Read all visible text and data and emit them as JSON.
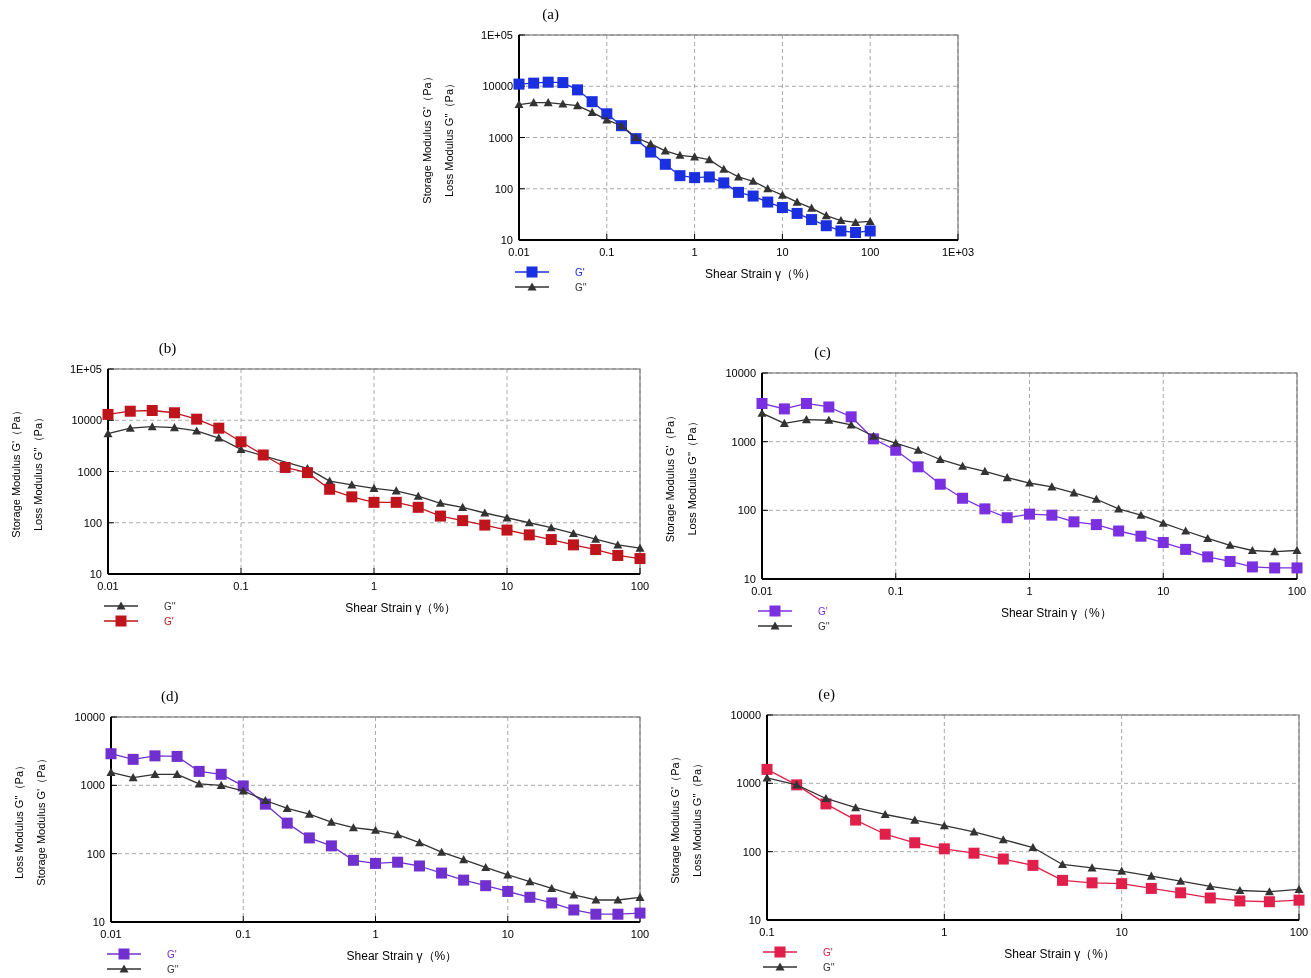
{
  "chart_data": [
    {
      "type": "line",
      "title": "(a)",
      "xlabel": "Shear Strain γ（%）",
      "ylabel": "Storage Modulus G'（Pa）\nLoss Modulus G''（Pa）",
      "log": "xy",
      "grid": true,
      "legend": "bottom left",
      "line_style": "solid",
      "xlim": [
        0.01,
        1000
      ],
      "xticks": [
        0.01,
        0.1,
        1,
        10,
        100,
        {
          "value": 1000,
          "label": "1E+03"
        }
      ],
      "ylim": [
        10,
        100000
      ],
      "yticks": [
        10,
        100,
        1000,
        10000,
        {
          "value": 100000,
          "label": "1E+05"
        }
      ],
      "x": [
        0.01,
        0.0147,
        0.0215,
        0.0316,
        0.0464,
        0.0681,
        0.1,
        0.147,
        0.215,
        0.316,
        0.464,
        0.681,
        1,
        1.47,
        2.15,
        3.16,
        4.64,
        6.81,
        10,
        14.7,
        21.5,
        31.6,
        46.4,
        68.1,
        100
      ],
      "series": [
        {
          "name": "G'",
          "color": "#1a2fe0",
          "marker": "square",
          "values": [
            11000,
            11500,
            12000,
            11800,
            8500,
            5000,
            2900,
            1700,
            950,
            520,
            300,
            180,
            165,
            170,
            130,
            85,
            72,
            55,
            43,
            33,
            25,
            19,
            15,
            14,
            15
          ]
        },
        {
          "name": "G''",
          "color": "#333333",
          "marker": "triangle",
          "values": [
            4400,
            4800,
            4800,
            4500,
            4200,
            3100,
            2200,
            1700,
            1000,
            750,
            550,
            450,
            420,
            370,
            240,
            170,
            140,
            100,
            75,
            55,
            42,
            30,
            24,
            22,
            23
          ]
        }
      ]
    },
    {
      "type": "line",
      "title": "(b)",
      "xlabel": "Shear Strain γ（%）",
      "ylabel": "Storage Modulus G'（Pa）\nLoss Modulus G''（Pa）",
      "log": "xy",
      "grid": true,
      "legend": "bottom left",
      "line_style": "solid",
      "xlim": [
        0.01,
        100
      ],
      "xticks": [
        0.01,
        0.1,
        1,
        10,
        100
      ],
      "ylim": [
        10,
        100000
      ],
      "yticks": [
        10,
        100,
        1000,
        10000,
        {
          "value": 100000,
          "label": "1E+05"
        }
      ],
      "x": [
        0.01,
        0.0147,
        0.0215,
        0.0316,
        0.0464,
        0.0681,
        0.1,
        0.147,
        0.215,
        0.316,
        0.464,
        0.681,
        1,
        1.47,
        2.15,
        3.16,
        4.64,
        6.81,
        10,
        14.7,
        21.5,
        31.6,
        46.4,
        68.1,
        100
      ],
      "series": [
        {
          "name": "G''",
          "color": "#333333",
          "marker": "triangle",
          "values": [
            5500,
            7000,
            7500,
            7200,
            6200,
            4500,
            2700,
            null,
            null,
            1150,
            650,
            550,
            470,
            420,
            330,
            240,
            200,
            155,
            125,
            100,
            80,
            62,
            48,
            37,
            32
          ]
        },
        {
          "name": "G'",
          "color": "#c0141c",
          "marker": "square",
          "values": [
            13000,
            15000,
            15500,
            14000,
            10500,
            7000,
            3800,
            2100,
            1200,
            950,
            450,
            320,
            250,
            250,
            200,
            135,
            110,
            90,
            72,
            58,
            47,
            37,
            30,
            23,
            20
          ]
        }
      ]
    },
    {
      "type": "line",
      "title": "(c)",
      "xlabel": "Shear Strain γ（%）",
      "ylabel": "Storage Modulus G'（Pa）\nLoss Modulus G''（Pa）",
      "log": "xy",
      "grid": true,
      "legend": "bottom left",
      "line_style": "solid",
      "xlim": [
        0.01,
        100
      ],
      "xticks": [
        0.01,
        0.1,
        1,
        10,
        100
      ],
      "ylim": [
        10,
        10000
      ],
      "yticks": [
        10,
        100,
        1000,
        10000
      ],
      "x": [
        0.01,
        0.0147,
        0.0215,
        0.0316,
        0.0464,
        0.0681,
        0.1,
        0.147,
        0.215,
        0.316,
        0.464,
        0.681,
        1,
        1.47,
        2.15,
        3.16,
        4.64,
        6.81,
        10,
        14.7,
        21.5,
        31.6,
        46.4,
        68.1,
        100
      ],
      "series": [
        {
          "name": "G'",
          "color": "#7a2fe0",
          "marker": "square",
          "values": [
            3600,
            3000,
            3600,
            3200,
            2300,
            1100,
            750,
            430,
            240,
            150,
            105,
            78,
            88,
            85,
            68,
            62,
            50,
            42,
            34,
            27,
            21,
            18,
            15,
            14.5,
            14.5
          ]
        },
        {
          "name": "G''",
          "color": "#333333",
          "marker": "triangle",
          "values": [
            2600,
            1850,
            2100,
            2050,
            1750,
            1200,
            950,
            750,
            550,
            440,
            370,
            300,
            250,
            220,
            180,
            145,
            105,
            85,
            65,
            50,
            39,
            31,
            26,
            25,
            26
          ]
        }
      ]
    },
    {
      "type": "line",
      "title": "(d)",
      "xlabel": "Shear Strain γ（%）",
      "ylabel": "Loss Modulus G''（Pa）\nStorage Modulus G'（Pa）",
      "log": "xy",
      "grid": true,
      "legend": "bottom left",
      "line_style": "solid",
      "xlim": [
        0.01,
        100
      ],
      "xticks": [
        0.01,
        0.1,
        1,
        10,
        100
      ],
      "ylim": [
        10,
        10000
      ],
      "yticks": [
        10,
        100,
        1000,
        10000
      ],
      "x": [
        0.01,
        0.0147,
        0.0215,
        0.0316,
        0.0464,
        0.0681,
        0.1,
        0.147,
        0.215,
        0.316,
        0.464,
        0.681,
        1,
        1.47,
        2.15,
        3.16,
        4.64,
        6.81,
        10,
        14.7,
        21.5,
        31.6,
        46.4,
        68.1,
        100
      ],
      "series": [
        {
          "name": "G'",
          "color": "#7030d0",
          "marker": "square",
          "values": [
            2900,
            2400,
            2700,
            2650,
            1600,
            1450,
            980,
            530,
            280,
            170,
            130,
            80,
            72,
            75,
            66,
            52,
            41,
            34,
            28,
            23,
            19,
            15,
            13,
            13,
            13.5
          ]
        },
        {
          "name": "G''",
          "color": "#333333",
          "marker": "triangle",
          "values": [
            1550,
            1300,
            1450,
            1450,
            1050,
            1000,
            830,
            600,
            460,
            380,
            290,
            240,
            220,
            190,
            145,
            105,
            82,
            63,
            49,
            39,
            31,
            25,
            21,
            21,
            23
          ]
        }
      ]
    },
    {
      "type": "line",
      "title": "(e)",
      "xlabel": "Shear Strain γ（%）",
      "ylabel": "Storage Modulus G'（Pa）\nLoss Modulus G''（Pa）",
      "log": "xy",
      "grid": true,
      "legend": "bottom left",
      "line_style": "solid",
      "xlim": [
        0.1,
        100
      ],
      "xticks": [
        0.1,
        1,
        10,
        100
      ],
      "ylim": [
        10,
        10000
      ],
      "yticks": [
        10,
        100,
        1000,
        10000
      ],
      "x": [
        0.1,
        0.147,
        0.215,
        0.316,
        0.464,
        0.681,
        1,
        1.47,
        2.15,
        3.16,
        4.64,
        6.81,
        10,
        14.7,
        21.5,
        31.6,
        46.4,
        68.1,
        100
      ],
      "series": [
        {
          "name": "G'",
          "color": "#e0204a",
          "marker": "square",
          "values": [
            1600,
            950,
            500,
            290,
            180,
            135,
            110,
            95,
            78,
            63,
            38,
            35,
            34,
            29,
            25,
            21,
            19,
            18.5,
            19.5
          ]
        },
        {
          "name": "G''",
          "color": "#333333",
          "marker": "triangle",
          "values": [
            1200,
            950,
            600,
            440,
            350,
            290,
            240,
            195,
            150,
            115,
            65,
            58,
            52,
            44,
            37,
            31,
            27,
            26,
            28
          ]
        }
      ]
    }
  ]
}
